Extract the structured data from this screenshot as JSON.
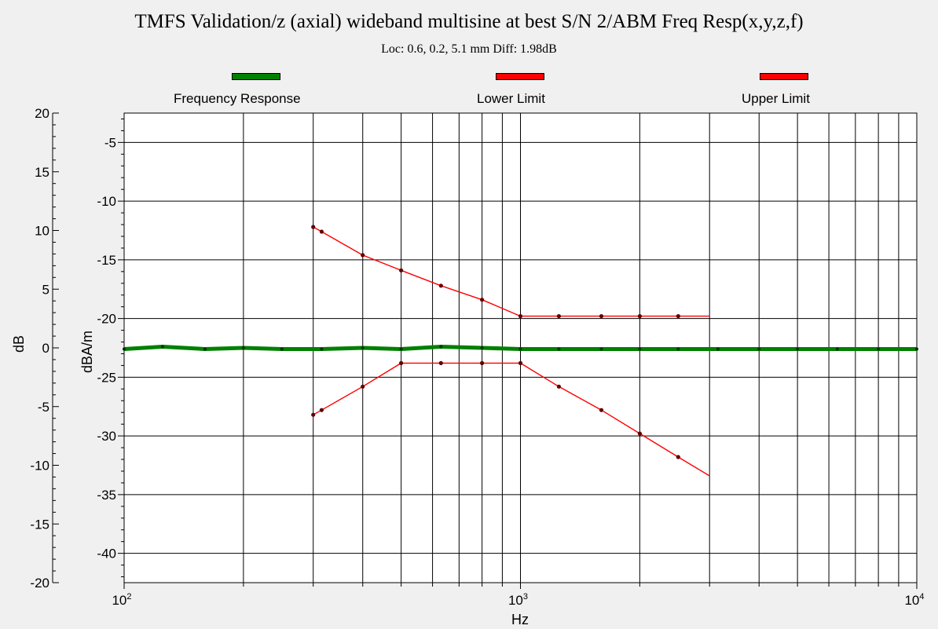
{
  "chart_data": {
    "type": "line",
    "title": "TMFS Validation/z (axial) wideband multisine at best S/N 2/ABM Freq Resp(x,y,z,f)",
    "subtitle": "Loc: 0.6, 0.2, 5.1 mm Diff: 1.98dB",
    "xlabel": "Hz",
    "ylabel_left": "dB",
    "ylabel_right": "dBA/m",
    "x_scale": "log",
    "xlim": [
      100,
      10000
    ],
    "x_tick_labels": [
      {
        "mantissa": "10",
        "exp": "2"
      },
      {
        "mantissa": "10",
        "exp": "3"
      },
      {
        "mantissa": "10",
        "exp": "4"
      }
    ],
    "ylim_left": [
      -20,
      20
    ],
    "y_left_ticks": [
      "20",
      "15",
      "10",
      "5",
      "0",
      "-5",
      "-10",
      "-15",
      "-20"
    ],
    "ylim_right": [
      -42.5,
      -2.5
    ],
    "y_right_ticks": [
      "-5",
      "-10",
      "-15",
      "-20",
      "-25",
      "-30",
      "-35",
      "-40"
    ],
    "grid": true,
    "legend_position": "top",
    "series": [
      {
        "name": "Frequency Response",
        "color": "#008000",
        "axis": "right",
        "x": [
          100,
          125,
          160,
          200,
          250,
          315,
          400,
          500,
          630,
          800,
          1000,
          1250,
          1600,
          2000,
          2500,
          3150,
          4000,
          5000,
          6300,
          8000,
          10000
        ],
        "y": [
          -22.6,
          -22.4,
          -22.6,
          -22.5,
          -22.6,
          -22.6,
          -22.5,
          -22.6,
          -22.4,
          -22.5,
          -22.6,
          -22.6,
          -22.6,
          -22.6,
          -22.6,
          -22.6,
          -22.6,
          -22.6,
          -22.6,
          -22.6,
          -22.6
        ]
      },
      {
        "name": "Lower Limit",
        "color": "#ff0000",
        "axis": "right",
        "x": [
          300,
          315,
          400,
          500,
          630,
          800,
          1000,
          1250,
          1600,
          2000,
          2500,
          3000
        ],
        "y": [
          -28.2,
          -27.8,
          -25.8,
          -23.8,
          -23.8,
          -23.8,
          -23.8,
          -25.8,
          -27.8,
          -29.8,
          -31.8,
          -33.4
        ]
      },
      {
        "name": "Upper Limit",
        "color": "#ff0000",
        "axis": "right",
        "x": [
          300,
          315,
          400,
          500,
          630,
          800,
          1000,
          1250,
          1600,
          2000,
          2500,
          3000
        ],
        "y": [
          -12.2,
          -12.6,
          -14.6,
          -15.9,
          -17.2,
          -18.4,
          -19.8,
          -19.8,
          -19.8,
          -19.8,
          -19.8,
          -19.8
        ]
      }
    ]
  }
}
